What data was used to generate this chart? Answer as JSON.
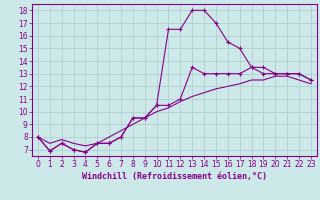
{
  "xlabel": "Windchill (Refroidissement éolien,°C)",
  "bg_color": "#cde8e8",
  "line_color": "#880088",
  "xlim": [
    -0.5,
    23.5
  ],
  "ylim": [
    6.5,
    18.5
  ],
  "yticks": [
    7,
    8,
    9,
    10,
    11,
    12,
    13,
    14,
    15,
    16,
    17,
    18
  ],
  "xticks": [
    0,
    1,
    2,
    3,
    4,
    5,
    6,
    7,
    8,
    9,
    10,
    11,
    12,
    13,
    14,
    15,
    16,
    17,
    18,
    19,
    20,
    21,
    22,
    23
  ],
  "line1_x": [
    0,
    1,
    2,
    3,
    4,
    5,
    6,
    7,
    8,
    9,
    10,
    11,
    12,
    13,
    14,
    15,
    16,
    17,
    18,
    19,
    20,
    21,
    22,
    23
  ],
  "line1_y": [
    8.0,
    6.9,
    7.5,
    7.0,
    6.8,
    7.5,
    7.5,
    8.0,
    9.5,
    9.5,
    10.5,
    16.5,
    16.5,
    18.0,
    18.0,
    17.0,
    15.5,
    15.0,
    13.5,
    13.5,
    13.0,
    13.0,
    13.0,
    12.5
  ],
  "line2_x": [
    0,
    1,
    2,
    3,
    4,
    5,
    6,
    7,
    8,
    9,
    10,
    11,
    12,
    13,
    14,
    15,
    16,
    17,
    18,
    19,
    20,
    21,
    22,
    23
  ],
  "line2_y": [
    8.0,
    6.9,
    7.5,
    7.0,
    6.8,
    7.5,
    7.5,
    8.0,
    9.5,
    9.5,
    10.5,
    10.5,
    11.0,
    13.5,
    13.0,
    13.0,
    13.0,
    13.0,
    13.5,
    13.0,
    13.0,
    13.0,
    13.0,
    12.5
  ],
  "line3_x": [
    0,
    1,
    2,
    3,
    4,
    5,
    6,
    7,
    8,
    9,
    10,
    11,
    12,
    13,
    14,
    15,
    16,
    17,
    18,
    19,
    20,
    21,
    22,
    23
  ],
  "line3_y": [
    8.0,
    7.5,
    7.8,
    7.5,
    7.3,
    7.5,
    8.0,
    8.5,
    9.0,
    9.5,
    10.0,
    10.3,
    10.8,
    11.2,
    11.5,
    11.8,
    12.0,
    12.2,
    12.5,
    12.5,
    12.8,
    12.8,
    12.5,
    12.2
  ],
  "grid_color": "#aacccc",
  "tick_fontsize": 5.5,
  "xlabel_fontsize": 6.0
}
